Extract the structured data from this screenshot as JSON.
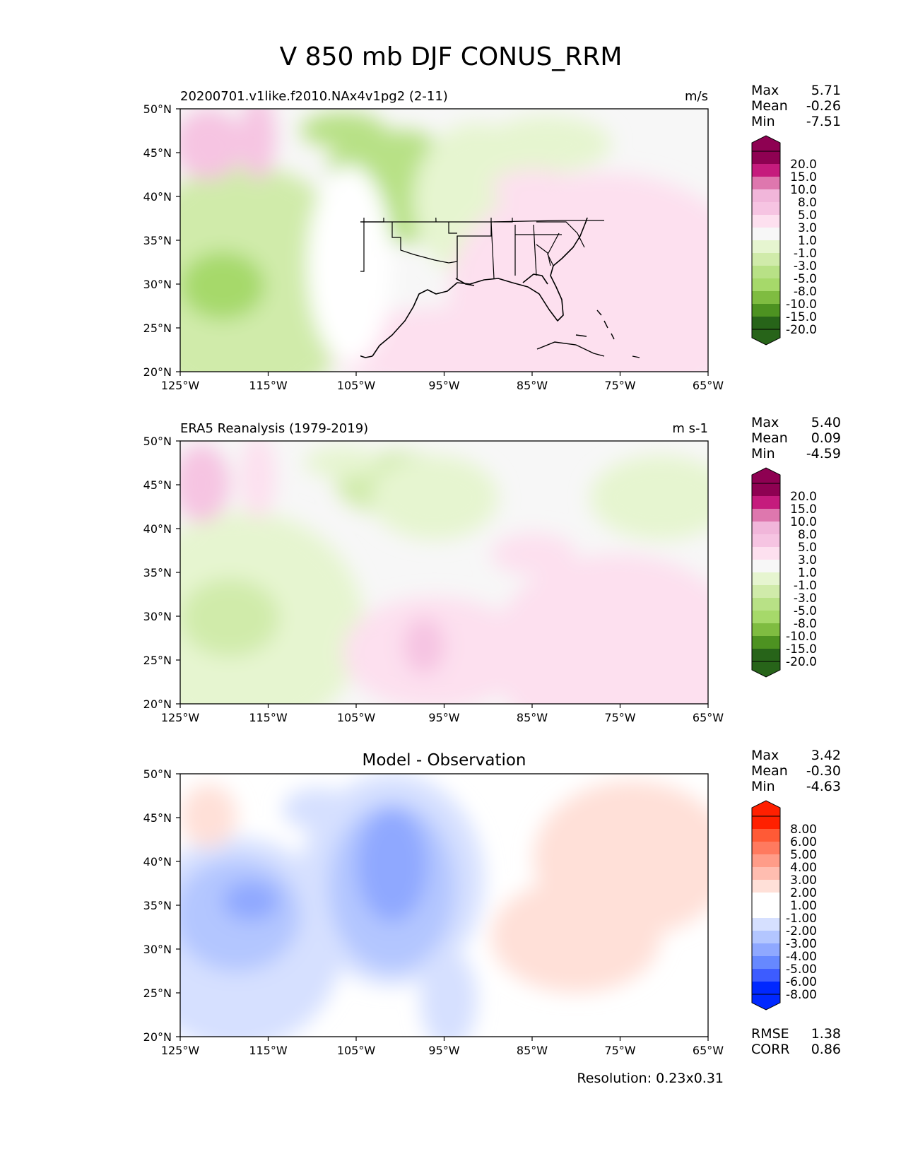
{
  "title": "V 850 mb DJF CONUS_RRM",
  "resolution": "Resolution: 0.23x0.31",
  "stat_labels": {
    "max": "Max",
    "mean": "Mean",
    "min": "Min",
    "rmse": "RMSE",
    "corr": "CORR"
  },
  "colors": {
    "full_field": [
      "#276419",
      "#4d9221",
      "#7fbc41",
      "#a6d96a",
      "#b8e186",
      "#d0ebaa",
      "#e6f5d0",
      "#f7f7f7",
      "#fde0ef",
      "#f6c4e2",
      "#f1b6da",
      "#de77ae",
      "#c51b7d",
      "#8e0152"
    ],
    "difference": [
      "#0028ff",
      "#3d5cff",
      "#6688ff",
      "#8fa8ff",
      "#b3c6ff",
      "#d6e0ff",
      "#ffffff",
      "#ffffff",
      "#ffe0d8",
      "#ffbdb0",
      "#ff9c88",
      "#ff7a5f",
      "#ff5a36",
      "#ff2000"
    ],
    "coast": "#000000",
    "ocean_neutral": "#f7f7f7"
  },
  "chart_data": [
    {
      "type": "heatmap",
      "id": "test",
      "left_title": "20200701.v1like.f2010.NAx4v1pg2 (2-11)",
      "right_title": "m/s",
      "center_title": "",
      "x_ticks": [
        "125°W",
        "115°W",
        "105°W",
        "95°W",
        "85°W",
        "75°W",
        "65°W"
      ],
      "y_ticks": [
        "50°N",
        "45°N",
        "40°N",
        "35°N",
        "30°N",
        "25°N",
        "20°N"
      ],
      "lon_range": [
        -125,
        -65
      ],
      "lat_range": [
        20,
        50
      ],
      "stats": {
        "max": "5.71",
        "mean": "-0.26",
        "min": "-7.51"
      },
      "colorbar_levels": [
        "20.0",
        "15.0",
        "10.0",
        "8.0",
        "5.0",
        "3.0",
        "1.0",
        "-1.0",
        "-3.0",
        "-5.0",
        "-8.0",
        "-10.0",
        "-15.0",
        "-20.0"
      ]
    },
    {
      "type": "heatmap",
      "id": "reference",
      "left_title": "ERA5 Reanalysis (1979-2019)",
      "right_title": "m s-1",
      "center_title": "",
      "x_ticks": [
        "125°W",
        "115°W",
        "105°W",
        "95°W",
        "85°W",
        "75°W",
        "65°W"
      ],
      "y_ticks": [
        "50°N",
        "45°N",
        "40°N",
        "35°N",
        "30°N",
        "25°N",
        "20°N"
      ],
      "lon_range": [
        -125,
        -65
      ],
      "lat_range": [
        20,
        50
      ],
      "stats": {
        "max": "5.40",
        "mean": "0.09",
        "min": "-4.59"
      },
      "colorbar_levels": [
        "20.0",
        "15.0",
        "10.0",
        "8.0",
        "5.0",
        "3.0",
        "1.0",
        "-1.0",
        "-3.0",
        "-5.0",
        "-8.0",
        "-10.0",
        "-15.0",
        "-20.0"
      ]
    },
    {
      "type": "heatmap",
      "id": "difference",
      "left_title": "",
      "right_title": "",
      "center_title": "Model - Observation",
      "x_ticks": [
        "125°W",
        "115°W",
        "105°W",
        "95°W",
        "85°W",
        "75°W",
        "65°W"
      ],
      "y_ticks": [
        "50°N",
        "45°N",
        "40°N",
        "35°N",
        "30°N",
        "25°N",
        "20°N"
      ],
      "lon_range": [
        -125,
        -65
      ],
      "lat_range": [
        20,
        50
      ],
      "stats": {
        "max": "3.42",
        "mean": "-0.30",
        "min": "-4.63",
        "rmse": "1.38",
        "corr": "0.86"
      },
      "colorbar_levels": [
        "8.00",
        "6.00",
        "5.00",
        "4.00",
        "3.00",
        "2.00",
        "1.00",
        "-1.00",
        "-2.00",
        "-3.00",
        "-4.00",
        "-5.00",
        "-6.00",
        "-8.00"
      ]
    }
  ]
}
